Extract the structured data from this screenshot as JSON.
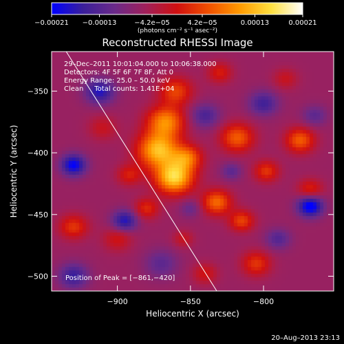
{
  "chart_data": {
    "type": "heatmap",
    "title": "Reconstructed RHESSI Image",
    "xlabel": "Heliocentric X (arcsec)",
    "ylabel": "Heliocentric Y (arcsec)",
    "xlim": [
      -945,
      -752
    ],
    "ylim": [
      -512,
      -318
    ],
    "x_ticks": [
      -900,
      -850,
      -800
    ],
    "x_tick_labels": [
      "−900",
      "−850",
      "−800"
    ],
    "y_ticks": [
      -350,
      -400,
      -450,
      -500
    ],
    "y_tick_labels": [
      "−350",
      "−400",
      "−450",
      "−500"
    ],
    "colorbar": {
      "min": -0.00021,
      "max": 0.00021,
      "tick_values": [
        -0.00021,
        -0.00013,
        -4.2e-05,
        4.2e-05,
        0.00013,
        0.00021
      ],
      "tick_labels": [
        "−0.00021",
        "−0.00013",
        "−4.2e−05",
        "4.2e−05",
        "0.00013",
        "0.00021"
      ],
      "label": "(photons cm⁻² s⁻¹ asec⁻²)",
      "colors": [
        "#0000ff",
        "#3a1f9a",
        "#6a2a8a",
        "#a0205a",
        "#d01010",
        "#f05000",
        "#ff9a00",
        "#ffe040",
        "#ffffff"
      ]
    },
    "info_lines": [
      "29–Dec–2011 10:01:04.000 to 10:06:38.000",
      "Detectors: 4F 5F 6F 7F 8F, Att 0",
      "Energy Range: 25.0 – 50.0 keV",
      "Clean     Total counts: 1.41E+04"
    ],
    "peak_label": "Position of Peak = [−861,−420]",
    "peak": {
      "x": -861,
      "y": -420
    },
    "limb_line": {
      "x": [
        -935,
        -832
      ],
      "y": [
        -318,
        -512
      ]
    },
    "blobs": [
      {
        "x": -861,
        "y": -420,
        "v": 0.00021,
        "s": 9
      },
      {
        "x": -872,
        "y": -398,
        "v": 0.00019,
        "s": 10
      },
      {
        "x": -867,
        "y": -375,
        "v": 0.00015,
        "s": 9
      },
      {
        "x": -860,
        "y": -350,
        "v": 0.0001,
        "s": 8
      },
      {
        "x": -852,
        "y": -404,
        "v": 0.00012,
        "s": 7
      },
      {
        "x": -880,
        "y": -445,
        "v": 8e-05,
        "s": 6
      },
      {
        "x": -892,
        "y": -418,
        "v": 7e-05,
        "s": 6
      },
      {
        "x": -910,
        "y": -380,
        "v": 5e-05,
        "s": 7
      },
      {
        "x": -818,
        "y": -388,
        "v": 0.00012,
        "s": 8
      },
      {
        "x": -832,
        "y": -440,
        "v": 0.00013,
        "s": 7
      },
      {
        "x": -798,
        "y": -415,
        "v": 9e-05,
        "s": 6
      },
      {
        "x": -775,
        "y": -390,
        "v": 0.00012,
        "s": 7
      },
      {
        "x": -768,
        "y": -430,
        "v": 8e-05,
        "s": 6
      },
      {
        "x": -815,
        "y": -455,
        "v": 0.0001,
        "s": 6
      },
      {
        "x": -830,
        "y": -335,
        "v": 7e-05,
        "s": 6
      },
      {
        "x": -900,
        "y": -470,
        "v": 6e-05,
        "s": 7
      },
      {
        "x": -930,
        "y": -460,
        "v": 9e-05,
        "s": 7
      },
      {
        "x": -805,
        "y": -490,
        "v": 9e-05,
        "s": 7
      },
      {
        "x": -840,
        "y": -498,
        "v": 6e-05,
        "s": 6
      },
      {
        "x": -855,
        "y": -470,
        "v": 5e-05,
        "s": 5
      },
      {
        "x": -785,
        "y": -340,
        "v": 5e-05,
        "s": 6
      },
      {
        "x": -930,
        "y": -410,
        "v": -0.00015,
        "s": 6
      },
      {
        "x": -912,
        "y": -350,
        "v": -0.00012,
        "s": 7
      },
      {
        "x": -768,
        "y": -443,
        "v": -0.00017,
        "s": 6
      },
      {
        "x": -895,
        "y": -455,
        "v": -0.00012,
        "s": 6
      },
      {
        "x": -840,
        "y": -370,
        "v": -8e-05,
        "s": 7
      },
      {
        "x": -800,
        "y": -360,
        "v": -9e-05,
        "s": 7
      },
      {
        "x": -930,
        "y": -500,
        "v": -0.0001,
        "s": 7
      },
      {
        "x": -870,
        "y": -490,
        "v": -6e-05,
        "s": 8
      },
      {
        "x": -790,
        "y": -470,
        "v": -7e-05,
        "s": 6
      },
      {
        "x": -850,
        "y": -445,
        "v": -5e-05,
        "s": 5
      },
      {
        "x": -822,
        "y": -415,
        "v": -6e-05,
        "s": 5
      },
      {
        "x": -765,
        "y": -370,
        "v": -6e-05,
        "s": 6
      }
    ]
  },
  "footer": {
    "timestamp": "20–Aug–2013 23:13"
  }
}
